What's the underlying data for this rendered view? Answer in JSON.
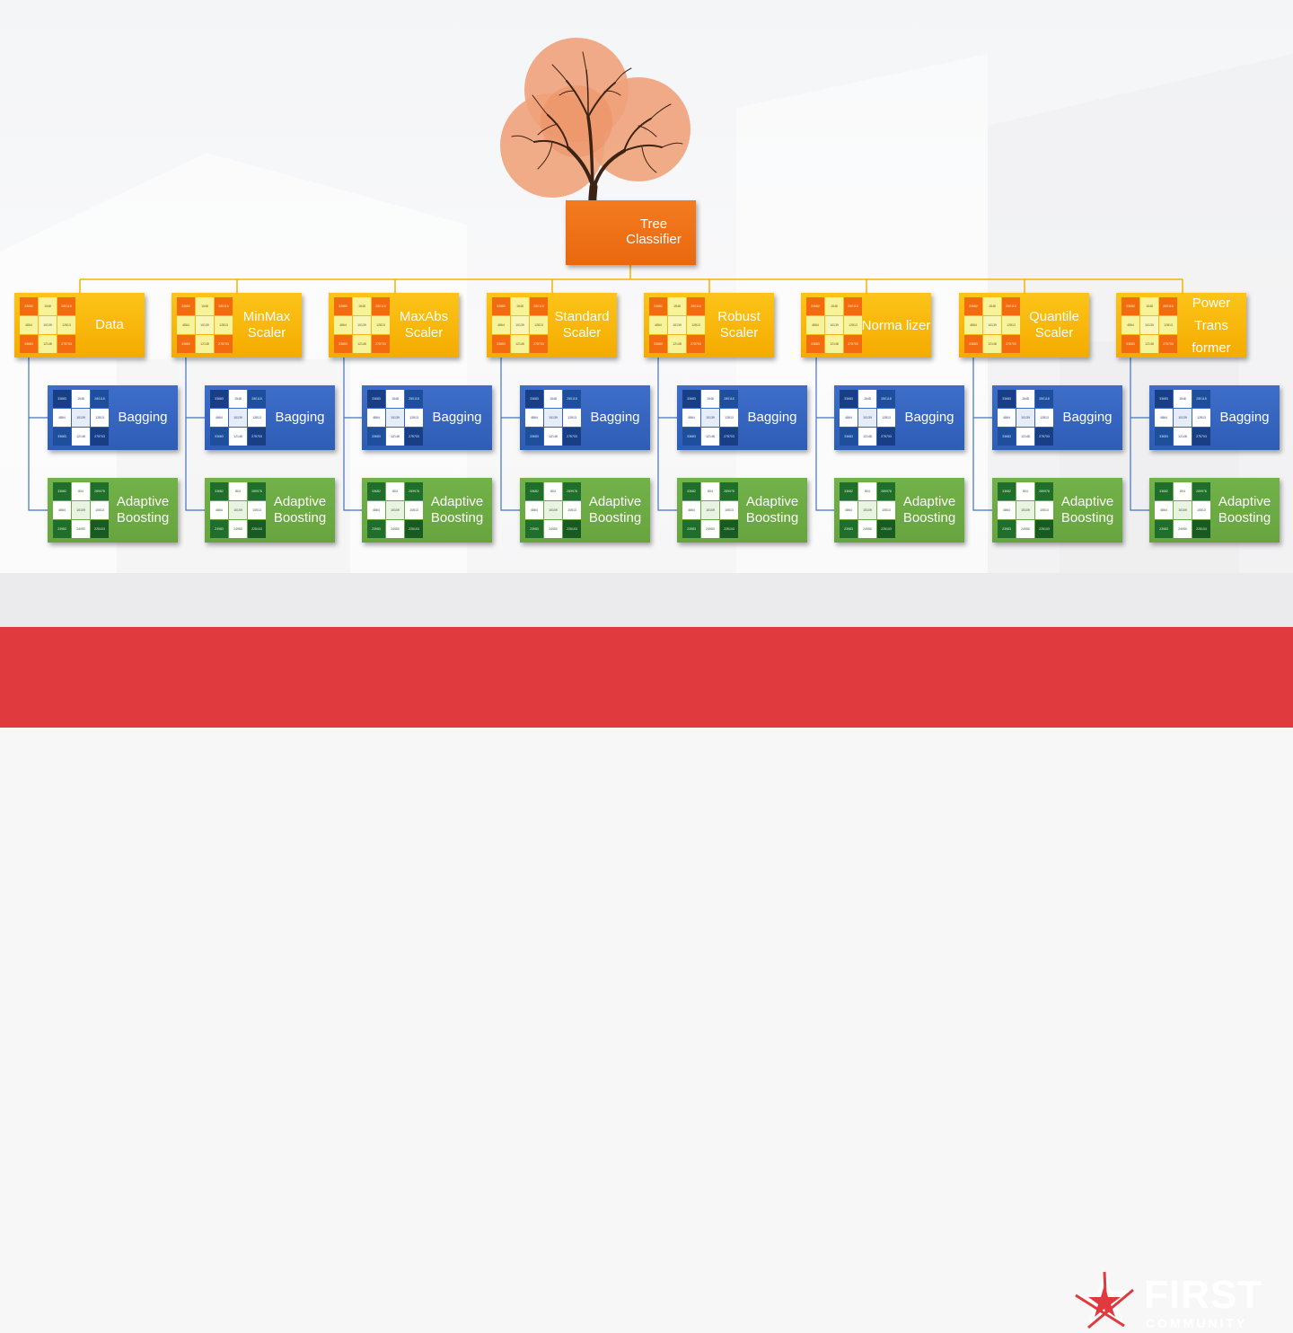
{
  "root": {
    "label": "Tree Classifier"
  },
  "columns": [
    {
      "scaler": "Data",
      "bagging": "Bagging",
      "boosting": "Adaptive Boosting"
    },
    {
      "scaler": "MinMax Scaler",
      "bagging": "Bagging",
      "boosting": "Adaptive Boosting"
    },
    {
      "scaler": "MaxAbs Scaler",
      "bagging": "Bagging",
      "boosting": "Adaptive Boosting"
    },
    {
      "scaler": "Standard Scaler",
      "bagging": "Bagging",
      "boosting": "Adaptive Boosting"
    },
    {
      "scaler": "Robust Scaler",
      "bagging": "Bagging",
      "boosting": "Adaptive Boosting"
    },
    {
      "scaler": "Norma lizer",
      "bagging": "Bagging",
      "boosting": "Adaptive Boosting"
    },
    {
      "scaler": "Quantile Scaler",
      "bagging": "Bagging",
      "boosting": "Adaptive Boosting"
    },
    {
      "scaler": "Power Trans former",
      "bagging": "Bagging",
      "boosting": "Adaptive Boosting"
    }
  ],
  "matrix": {
    "yellow": [
      "33682",
      "1548",
      "280118",
      "4864",
      "10139",
      "12813",
      "33683",
      "12148",
      "275703"
    ],
    "blue": [
      "33683",
      "1548",
      "280118",
      "4864",
      "10139",
      "12813",
      "33683",
      "12148",
      "275703"
    ],
    "green": [
      "33682",
      "804",
      "289978",
      "4864",
      "10109",
      "10513",
      "23983",
      "24950",
      "225103"
    ]
  },
  "brand": {
    "first": "FIRST",
    "community": "COMMUNITY"
  },
  "colors": {
    "root": "#f47b20",
    "scaler": "#fcc419",
    "bagging": "#3d6ec9",
    "boosting": "#72b24a",
    "connector_top": "#f5b400",
    "connector_side": "#4472c4",
    "footer": "#e0393e"
  }
}
